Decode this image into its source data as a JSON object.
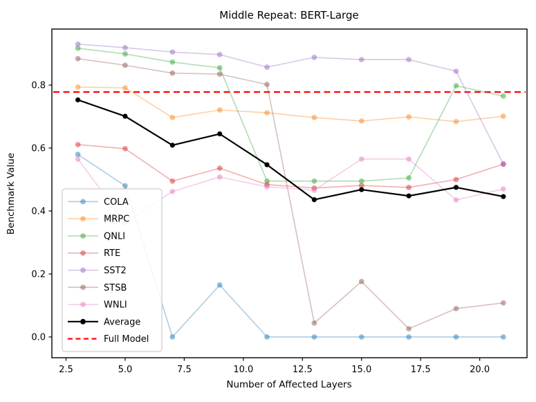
{
  "chart_data": {
    "type": "line",
    "title": "Middle Repeat: BERT-Large",
    "xlabel": "Number of Affected Layers",
    "ylabel": "Benchmark Value",
    "grid": false,
    "legend_position": "lower-left",
    "x": [
      3,
      5,
      7,
      9,
      11,
      13,
      15,
      17,
      19,
      21
    ],
    "xlim": [
      1.9,
      22.0
    ],
    "ylim": [
      -0.066,
      0.978
    ],
    "xticks": [
      "2.5",
      "5.0",
      "7.5",
      "10.0",
      "12.5",
      "15.0",
      "17.5",
      "20.0"
    ],
    "xtick_values": [
      2.5,
      5.0,
      7.5,
      10.0,
      12.5,
      15.0,
      17.5,
      20.0
    ],
    "yticks": [
      "0.0",
      "0.2",
      "0.4",
      "0.6",
      "0.8"
    ],
    "ytick_values": [
      0.0,
      0.2,
      0.4,
      0.6,
      0.8
    ],
    "series": [
      {
        "name": "COLA",
        "color": "#1f77b4",
        "alpha": 0.35,
        "values": [
          0.58,
          0.48,
          0.0,
          0.165,
          0.0,
          0.0,
          0.0,
          0.0,
          0.0,
          0.0
        ]
      },
      {
        "name": "MRPC",
        "color": "#ff7f0e",
        "alpha": 0.35,
        "values": [
          0.794,
          0.791,
          0.697,
          0.721,
          0.712,
          0.697,
          0.686,
          0.699,
          0.684,
          0.701
        ]
      },
      {
        "name": "QNLI",
        "color": "#2ca02c",
        "alpha": 0.35,
        "values": [
          0.917,
          0.899,
          0.873,
          0.855,
          0.495,
          0.495,
          0.495,
          0.505,
          0.798,
          0.765
        ]
      },
      {
        "name": "RTE",
        "color": "#d62728",
        "alpha": 0.35,
        "values": [
          0.611,
          0.598,
          0.495,
          0.536,
          0.484,
          0.473,
          0.481,
          0.475,
          0.5,
          0.549
        ]
      },
      {
        "name": "SST2",
        "color": "#9467bd",
        "alpha": 0.35,
        "values": [
          0.93,
          0.919,
          0.905,
          0.897,
          0.857,
          0.888,
          0.881,
          0.881,
          0.844,
          0.549
        ]
      },
      {
        "name": "STSB",
        "color": "#8c564b",
        "alpha": 0.35,
        "values": [
          0.884,
          0.863,
          0.838,
          0.835,
          0.802,
          0.044,
          0.176,
          0.026,
          0.09,
          0.108
        ]
      },
      {
        "name": "WNLI",
        "color": "#e377c2",
        "alpha": 0.35,
        "values": [
          0.565,
          0.363,
          0.462,
          0.508,
          0.477,
          0.466,
          0.565,
          0.565,
          0.435,
          0.47
        ]
      },
      {
        "name": "Average",
        "color": "#000000",
        "alpha": 1.0,
        "values": [
          0.753,
          0.701,
          0.609,
          0.645,
          0.547,
          0.436,
          0.468,
          0.448,
          0.475,
          0.446
        ]
      }
    ],
    "reference_line": {
      "name": "Full Model",
      "color": "#ff0000",
      "style": "dashed",
      "y": 0.778
    },
    "legend_entries": [
      "COLA",
      "MRPC",
      "QNLI",
      "RTE",
      "SST2",
      "STSB",
      "WNLI",
      "Average",
      "Full Model"
    ]
  }
}
